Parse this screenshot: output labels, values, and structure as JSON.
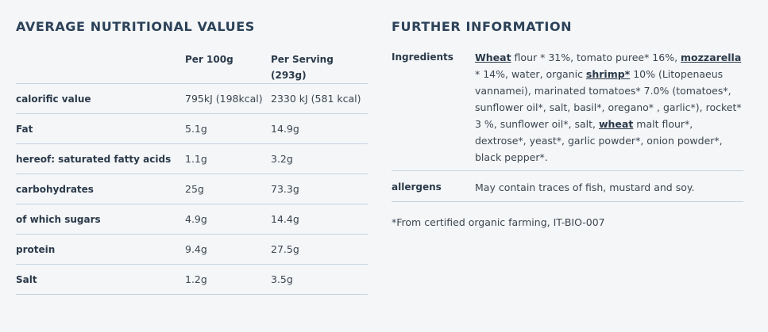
{
  "nutrition": {
    "title": "AVERAGE NUTRITIONAL VALUES",
    "header": {
      "per_100g": "Per 100g",
      "per_serving": "Per Serving (293g)"
    },
    "rows": [
      [
        "calorific value",
        "795kJ (198kcal)",
        "2330 kJ (581 kcal)"
      ],
      [
        "Fat",
        "5.1g",
        "14.9g"
      ],
      [
        "hereof: saturated fatty acids",
        "1.1g",
        "3.2g"
      ],
      [
        "carbohydrates",
        "25g",
        "73.3g"
      ],
      [
        "of which sugars",
        "4.9g",
        "14.4g"
      ],
      [
        "protein",
        "9.4g",
        "27.5g"
      ],
      [
        "Salt",
        "1.2g",
        "3.5g"
      ]
    ]
  },
  "further": {
    "title": "FURTHER INFORMATION",
    "ingredients_label": "Ingredients",
    "ingredients": [
      {
        "text": "Wheat",
        "bold": true
      },
      {
        "text": " flour * 31%, tomato puree* 16%, ",
        "bold": false
      },
      {
        "text": "mozzarella",
        "bold": true
      },
      {
        "text": " * 14%, water, organic ",
        "bold": false
      },
      {
        "text": "shrimp*",
        "bold": true
      },
      {
        "text": " 10% (Litopenaeus vannamei), marinated tomatoes* 7.0% (tomatoes*, sunflower oil*, salt, basil*, oregano* , garlic*), rocket* 3 %, sunflower oil*, salt, ",
        "bold": false
      },
      {
        "text": "wheat",
        "bold": true
      },
      {
        "text": " malt flour*, dextrose*, yeast*, garlic powder*, onion powder*, black pepper*.",
        "bold": false
      }
    ],
    "allergens_label": "allergens",
    "allergens": "May contain traces of fish, mustard and soy.",
    "footnote": "*From certified organic farming, IT-BIO-007"
  }
}
